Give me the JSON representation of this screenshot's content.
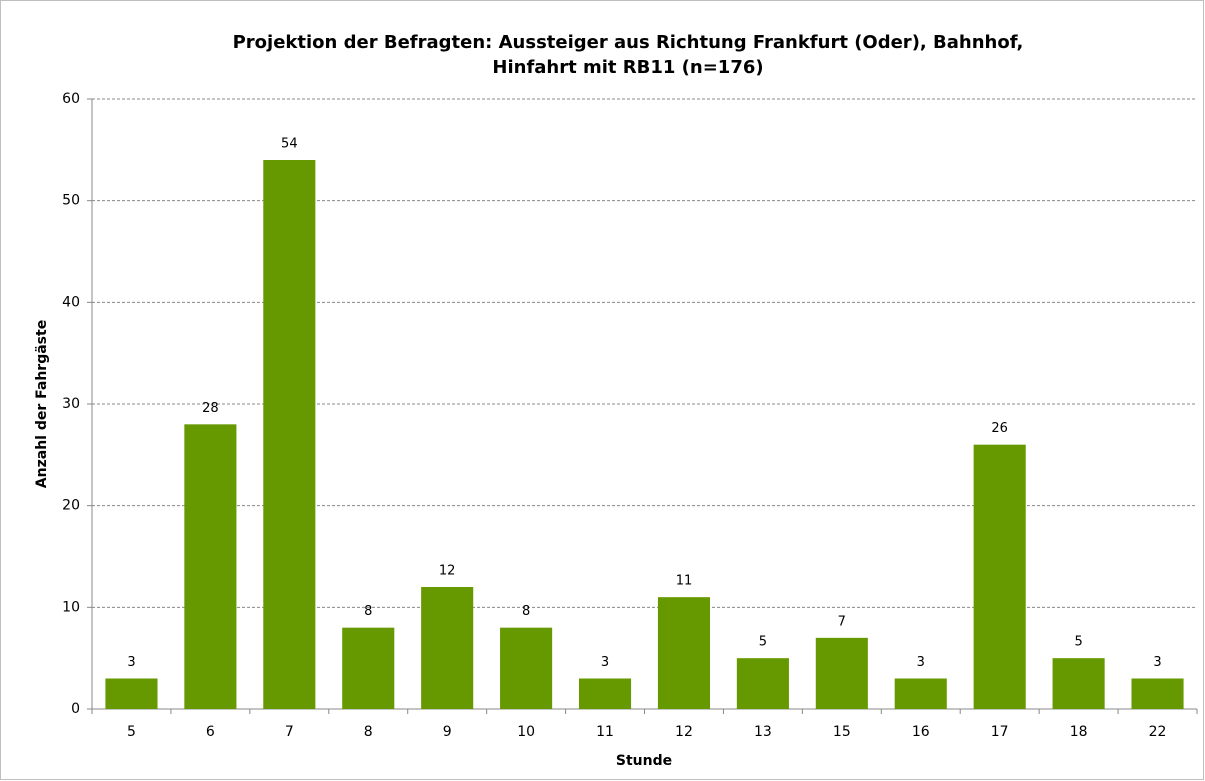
{
  "chart_data": {
    "type": "bar",
    "title": [
      "Projektion der Befragten: Aussteiger aus Richtung Frankfurt (Oder), Bahnhof,",
      "Hinfahrt mit RB11 (n=176)"
    ],
    "x_label": "Stunde",
    "y_label": "Anzahl der Fahrgäste",
    "categories": [
      "5",
      "6",
      "7",
      "8",
      "9",
      "10",
      "11",
      "12",
      "13",
      "15",
      "16",
      "17",
      "18",
      "22"
    ],
    "values": [
      3,
      28,
      54,
      8,
      12,
      8,
      3,
      11,
      5,
      7,
      3,
      26,
      5,
      3
    ],
    "color": "#669900",
    "ylim": [
      0,
      60
    ],
    "yticks": [
      0,
      10,
      20,
      30,
      40,
      50,
      60
    ],
    "grid": true
  }
}
